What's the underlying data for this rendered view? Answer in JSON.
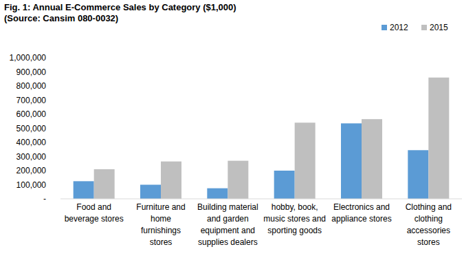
{
  "chart_data": {
    "type": "bar",
    "title": "Fig. 1: Annual E-Commerce Sales by Category ($1,000)",
    "subtitle": "(Source: Cansim 080-0032)",
    "categories": [
      "Food and beverage stores",
      "Furniture and home furnishings stores",
      "Building material and garden equipment and supplies dealers",
      "hobby, book, music stores and sporting goods",
      "Electronics and appliance stores",
      "Clothing and clothing accessories stores"
    ],
    "series": [
      {
        "name": "2012",
        "color": "#5b9bd5",
        "values": [
          125000,
          100000,
          75000,
          200000,
          535000,
          345000
        ]
      },
      {
        "name": "2015",
        "color": "#bfbfbf",
        "values": [
          210000,
          265000,
          270000,
          540000,
          565000,
          860000
        ]
      }
    ],
    "ylim": [
      0,
      1000000
    ],
    "yticks": [
      {
        "value": 0,
        "label": "-"
      },
      {
        "value": 100000,
        "label": "100,000"
      },
      {
        "value": 200000,
        "label": "200,000"
      },
      {
        "value": 300000,
        "label": "300,000"
      },
      {
        "value": 400000,
        "label": "400,000"
      },
      {
        "value": 500000,
        "label": "500,000"
      },
      {
        "value": 600000,
        "label": "600,000"
      },
      {
        "value": 700000,
        "label": "700,000"
      },
      {
        "value": 800000,
        "label": "800,000"
      },
      {
        "value": 900000,
        "label": "900,000"
      },
      {
        "value": 1000000,
        "label": "1,000,000"
      }
    ],
    "grid": false,
    "legend": "top-right"
  }
}
